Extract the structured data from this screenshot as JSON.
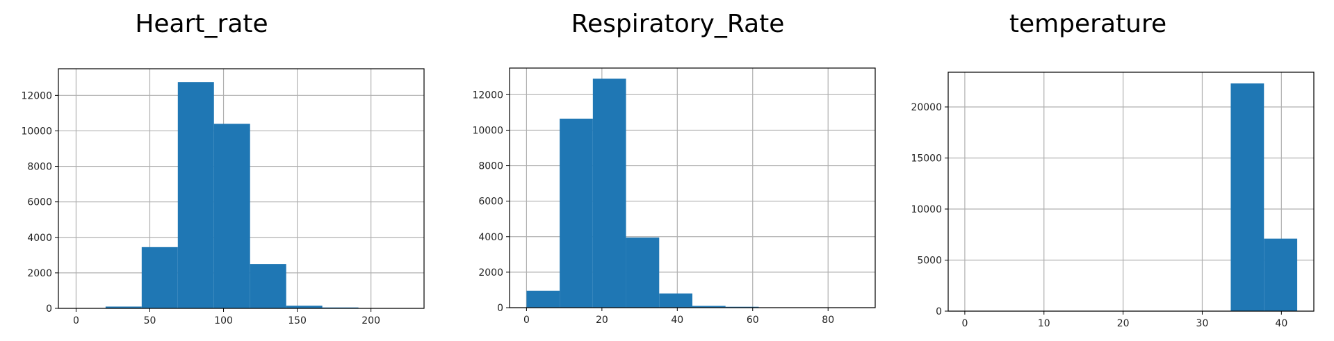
{
  "chart_data": [
    {
      "type": "bar",
      "title": "Heart_rate",
      "bin_edges": [
        20,
        44.5,
        69,
        93.5,
        118,
        142.5,
        167,
        191.5,
        216,
        240.5
      ],
      "values": [
        100,
        3450,
        12750,
        10400,
        2500,
        150,
        50,
        0,
        0
      ],
      "xlim": [
        -12,
        236
      ],
      "ylim": [
        0,
        13500
      ],
      "xticks": [
        0,
        50,
        100,
        150,
        200
      ],
      "yticks": [
        0,
        2000,
        4000,
        6000,
        8000,
        10000,
        12000
      ],
      "grid": true,
      "color": "#1f77b4"
    },
    {
      "type": "bar",
      "title": "Respiratory_Rate",
      "bin_edges": [
        0,
        8.8,
        17.6,
        26.4,
        35.2,
        44,
        52.8,
        61.6,
        70.4,
        79.2,
        88
      ],
      "values": [
        950,
        10650,
        12900,
        3950,
        800,
        100,
        50,
        0,
        0,
        0
      ],
      "xlim": [
        -4.5,
        92.5
      ],
      "ylim": [
        0,
        13500
      ],
      "xticks": [
        0,
        20,
        40,
        60,
        80
      ],
      "yticks": [
        0,
        2000,
        4000,
        6000,
        8000,
        10000,
        12000
      ],
      "grid": true,
      "color": "#1f77b4"
    },
    {
      "type": "bar",
      "title": "temperature",
      "bin_edges": [
        0,
        4.2,
        8.4,
        12.6,
        16.8,
        21,
        25.2,
        29.4,
        33.6,
        37.8,
        42
      ],
      "values": [
        10,
        0,
        0,
        0,
        0,
        0,
        0,
        0,
        22300,
        7100
      ],
      "xlim": [
        -2.1,
        44.1
      ],
      "ylim": [
        0,
        23400
      ],
      "xticks": [
        0,
        10,
        20,
        30,
        40
      ],
      "yticks": [
        0,
        5000,
        10000,
        15000,
        20000
      ],
      "grid": true,
      "color": "#1f77b4"
    }
  ]
}
